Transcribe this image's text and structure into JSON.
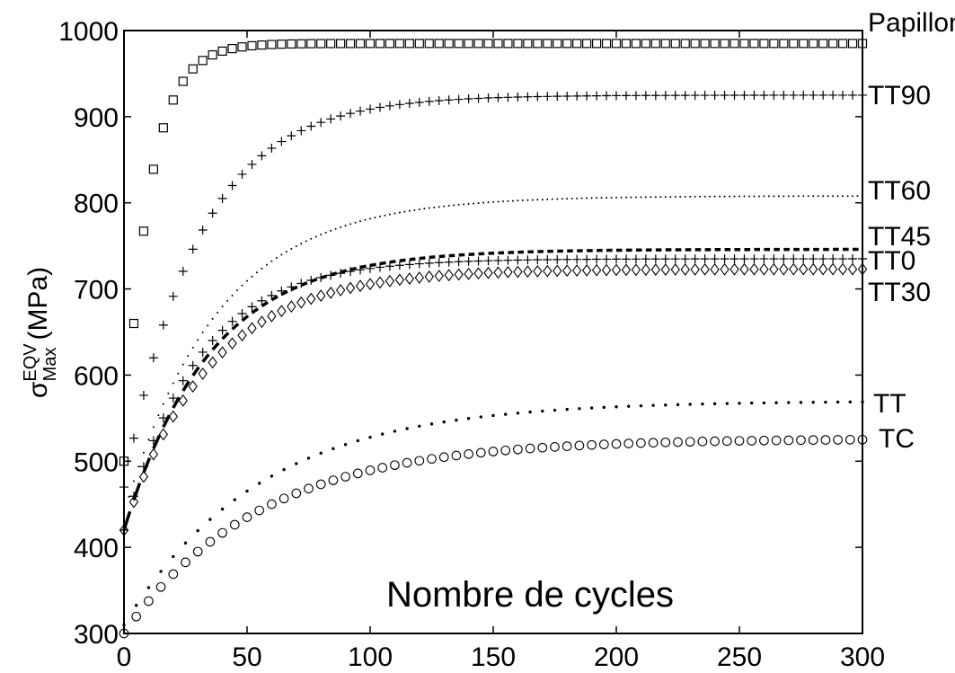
{
  "chart_data": {
    "type": "scatter",
    "title": "",
    "xlabel": "Nombre de cycles",
    "ylabel": "(MPa)",
    "ylabel_symbol": "σ",
    "ylabel_sup": "EQV",
    "ylabel_sub": "Max",
    "xlim": [
      0,
      300
    ],
    "ylim": [
      300,
      1000
    ],
    "xticks": [
      0,
      50,
      100,
      150,
      200,
      250,
      300
    ],
    "yticks": [
      300,
      400,
      500,
      600,
      700,
      800,
      900,
      1000
    ],
    "grid": false,
    "series": [
      {
        "name": "Papillon",
        "marker": "square",
        "y_start": 500,
        "y_end": 985,
        "tau": 10,
        "step": 4,
        "y_at": [
          [
            0,
            500
          ],
          [
            50,
            983
          ],
          [
            300,
            985
          ]
        ]
      },
      {
        "name": "TT90",
        "marker": "plus",
        "y_start": 470,
        "y_end": 925,
        "tau": 30,
        "step": 4,
        "y_at": [
          [
            0,
            470
          ],
          [
            100,
            910
          ],
          [
            300,
            925
          ]
        ]
      },
      {
        "name": "TT60",
        "marker": "dot-fine",
        "y_start": 440,
        "y_end": 808,
        "tau": 38,
        "step": 2,
        "y_at": [
          [
            0,
            440
          ],
          [
            150,
            800
          ],
          [
            300,
            808
          ]
        ]
      },
      {
        "name": "TT45",
        "marker": "dash",
        "y_start": 420,
        "y_end": 746,
        "tau": 35,
        "step": 4,
        "y_at": [
          [
            0,
            420
          ],
          [
            100,
            735
          ],
          [
            300,
            746
          ]
        ]
      },
      {
        "name": "TT0",
        "marker": "plus",
        "y_start": 420,
        "y_end": 735,
        "tau": 30,
        "step": 4,
        "y_at": [
          [
            0,
            420
          ],
          [
            100,
            728
          ],
          [
            300,
            735
          ]
        ]
      },
      {
        "name": "TT30",
        "marker": "diamond",
        "y_start": 420,
        "y_end": 723,
        "tau": 35,
        "step": 4,
        "y_at": [
          [
            0,
            420
          ],
          [
            100,
            715
          ],
          [
            300,
            723
          ]
        ]
      },
      {
        "name": "TT",
        "marker": "dot",
        "y_start": 310,
        "y_end": 570,
        "tau": 55,
        "step": 5,
        "y_at": [
          [
            0,
            310
          ],
          [
            150,
            555
          ],
          [
            300,
            570
          ]
        ]
      },
      {
        "name": "TC",
        "marker": "circle",
        "y_start": 300,
        "y_end": 526,
        "tau": 55,
        "step": 5,
        "y_at": [
          [
            0,
            300
          ],
          [
            150,
            515
          ],
          [
            300,
            526
          ]
        ]
      }
    ]
  }
}
